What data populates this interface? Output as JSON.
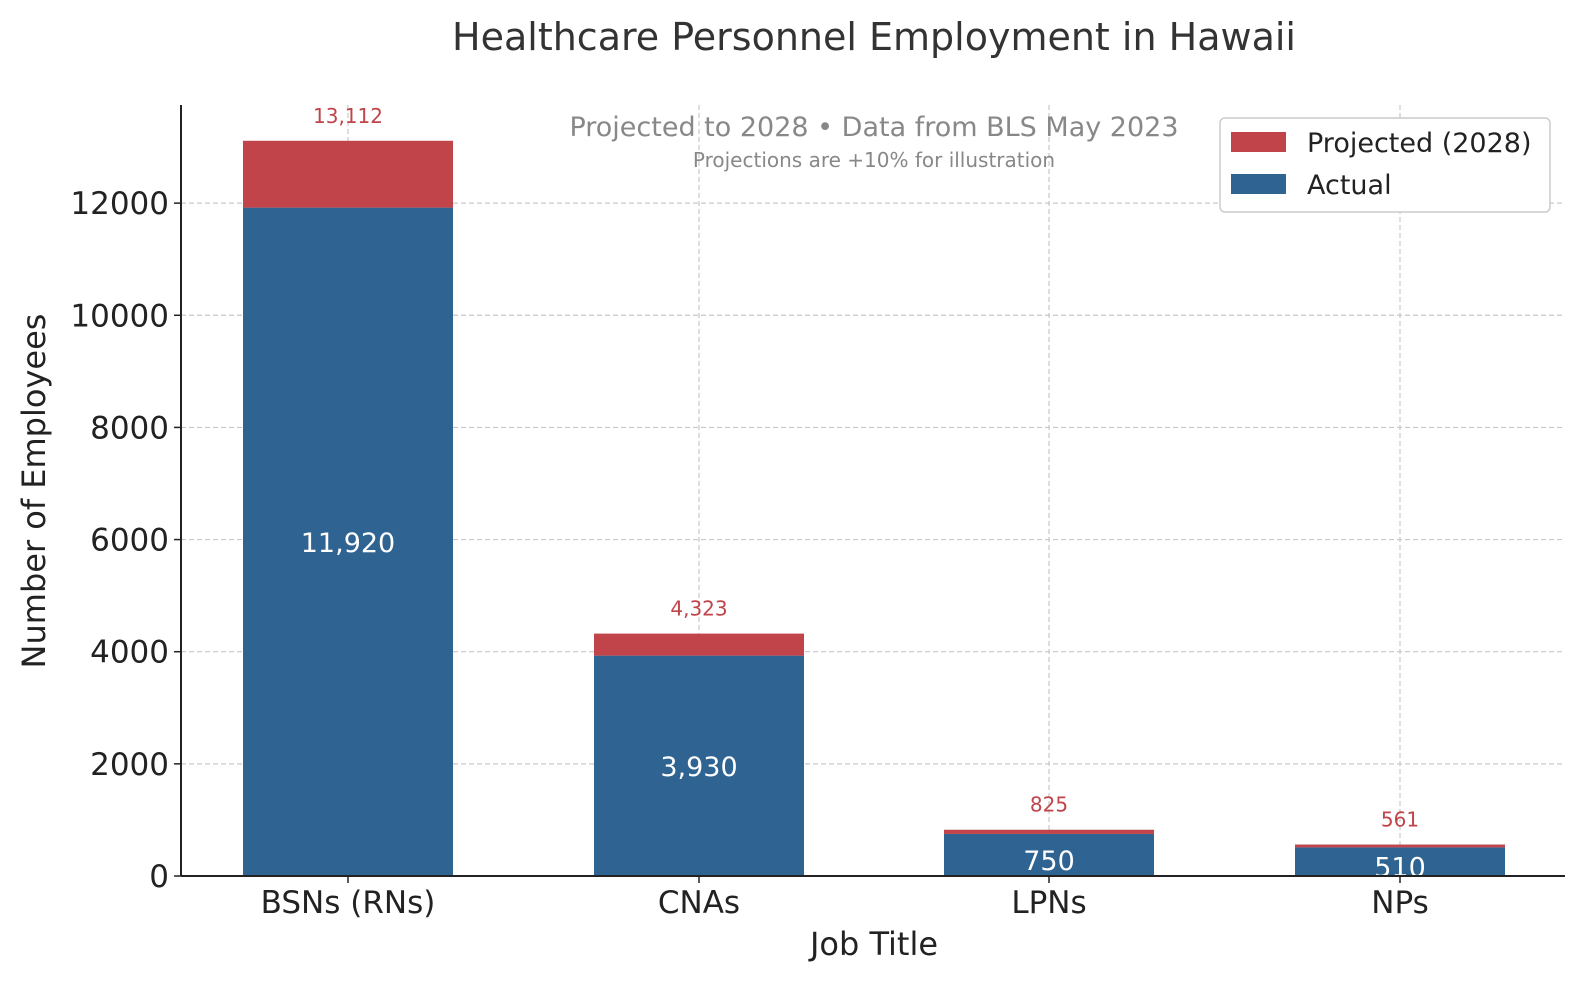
{
  "chart_data": {
    "type": "bar",
    "stacked": true,
    "title": "Healthcare Personnel Employment in Hawaii",
    "subtitle": "Projected to 2028 • Data from BLS May 2023",
    "note": "Projections are +10% for illustration",
    "xlabel": "Job Title",
    "ylabel": "Number of Employees",
    "categories": [
      "BSNs (RNs)",
      "CNAs",
      "LPNs",
      "NPs"
    ],
    "series": [
      {
        "name": "Actual",
        "values": [
          11920,
          3930,
          750,
          510
        ],
        "color": "#2f6391",
        "labels": [
          "11,920",
          "3,930",
          "750",
          "510"
        ]
      },
      {
        "name": "Projected (2028)",
        "values": [
          1192,
          393,
          75,
          51
        ],
        "totals": [
          13112,
          4323,
          825,
          561
        ],
        "color": "#c0444a",
        "labels": [
          "13,112",
          "4,323",
          "825",
          "561"
        ]
      }
    ],
    "legend": {
      "position": "top-right",
      "entries": [
        "Projected (2028)",
        "Actual"
      ]
    },
    "ylim": [
      0,
      13750
    ],
    "yticks": [
      0,
      2000,
      4000,
      6000,
      8000,
      10000,
      12000
    ],
    "grid": true,
    "colors": {
      "axis": "#222222",
      "grid": "#c8c8c8",
      "subtitle": "#888888",
      "title": "#333333"
    }
  }
}
